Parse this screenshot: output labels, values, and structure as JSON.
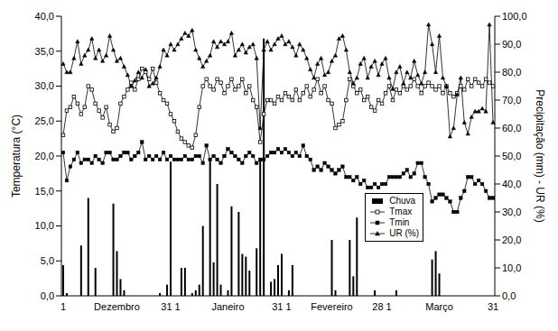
{
  "chart_data": {
    "type": "combo",
    "y_label": "Temperatura (°C)",
    "y2_label": "Precipitação (mm) - UR (%)",
    "legend": "lower right",
    "grid": false,
    "categories": [
      "1",
      null,
      null,
      null,
      null,
      null,
      null,
      null,
      null,
      null,
      null,
      null,
      null,
      null,
      null,
      "Dezembro",
      null,
      null,
      null,
      null,
      null,
      null,
      null,
      null,
      null,
      null,
      null,
      null,
      null,
      null,
      "31 1",
      null,
      null,
      null,
      null,
      null,
      null,
      null,
      null,
      null,
      null,
      null,
      null,
      null,
      null,
      null,
      "Janeiro",
      null,
      null,
      null,
      null,
      null,
      null,
      null,
      null,
      null,
      null,
      null,
      null,
      null,
      null,
      "31 1",
      null,
      null,
      null,
      null,
      null,
      null,
      null,
      null,
      null,
      null,
      null,
      null,
      null,
      "Fevereiro",
      null,
      null,
      null,
      null,
      null,
      null,
      null,
      null,
      null,
      null,
      null,
      null,
      null,
      "28 1",
      null,
      null,
      null,
      null,
      null,
      null,
      null,
      null,
      null,
      null,
      null,
      null,
      null,
      null,
      null,
      "Março",
      null,
      null,
      null,
      null,
      null,
      null,
      null,
      null,
      null,
      null,
      null,
      null,
      null,
      null,
      "31"
    ],
    "ylim": [
      0,
      40
    ],
    "yticks": [
      {
        "value": 0,
        "label": "0,0"
      },
      {
        "value": 5,
        "label": "5,0"
      },
      {
        "value": 10,
        "label": "10,0"
      },
      {
        "value": 15,
        "label": "15,0"
      },
      {
        "value": 20,
        "label": "20,0"
      },
      {
        "value": 25,
        "label": "25,0"
      },
      {
        "value": 30,
        "label": "30,0"
      },
      {
        "value": 35,
        "label": "35,0"
      },
      {
        "value": 40,
        "label": "40,0"
      }
    ],
    "y2lim": [
      0,
      100
    ],
    "y2ticks": [
      {
        "value": 0,
        "label": "0,0"
      },
      {
        "value": 10,
        "label": "10,0"
      },
      {
        "value": 20,
        "label": "20,0"
      },
      {
        "value": 30,
        "label": "30,0"
      },
      {
        "value": 40,
        "label": "40,0"
      },
      {
        "value": 50,
        "label": "50,0"
      },
      {
        "value": 60,
        "label": "60,0"
      },
      {
        "value": 70,
        "label": "70,0"
      },
      {
        "value": 80,
        "label": "80,0"
      },
      {
        "value": 90,
        "label": "90,0"
      },
      {
        "value": 100,
        "label": "100,0"
      }
    ],
    "series": [
      {
        "name": "Chuva",
        "type": "bar",
        "axis": "y2",
        "color": "#000000",
        "values": [
          11,
          1,
          0,
          0,
          0,
          18,
          0,
          35,
          0,
          10,
          0,
          0,
          0,
          0,
          33,
          16,
          6,
          2,
          0,
          0,
          0,
          0,
          0,
          0,
          0,
          0,
          0,
          1,
          0,
          4,
          48,
          0,
          0,
          10,
          10,
          0,
          1,
          2,
          4,
          25,
          0,
          49,
          12,
          40,
          4,
          0,
          2,
          32,
          0,
          30,
          15,
          14,
          9,
          0,
          17,
          49,
          92,
          0,
          5,
          6,
          11,
          15,
          0,
          2,
          11,
          0,
          0,
          0,
          0,
          0,
          0,
          0,
          0,
          0,
          0,
          20,
          2,
          0,
          0,
          0,
          20,
          7,
          28,
          0,
          0,
          0,
          0,
          2,
          0,
          0,
          0,
          0,
          0,
          2,
          0,
          0,
          0,
          0,
          0,
          0,
          0,
          0,
          0,
          13,
          16,
          8,
          0,
          0,
          0,
          0,
          0,
          0,
          0,
          0,
          0,
          0,
          0,
          0,
          0,
          0,
          0
        ]
      },
      {
        "name": "Tmax",
        "type": "line",
        "color": "#000000",
        "marker": "square-open",
        "line_style": "solid",
        "values": [
          23,
          26.5,
          27,
          28.5,
          27.5,
          26,
          27,
          30,
          29.5,
          27.5,
          26.5,
          25.5,
          27,
          24.5,
          23.5,
          24,
          27.5,
          28.5,
          29.5,
          30.5,
          29.5,
          31,
          32.5,
          32,
          31,
          32.5,
          30.5,
          29,
          28,
          27.5,
          26,
          25,
          23.5,
          22.5,
          22,
          21.5,
          21.2,
          23,
          27,
          30,
          31,
          30,
          29.5,
          31,
          30.5,
          29,
          30,
          31,
          29.5,
          30,
          31,
          29,
          30,
          28,
          27,
          22,
          26,
          28,
          28,
          27.5,
          28.5,
          28,
          29,
          28.5,
          28,
          29.5,
          28,
          29,
          30,
          28.5,
          29.5,
          31,
          29,
          30,
          28,
          27.5,
          24,
          24.5,
          25,
          28,
          31,
          30,
          29,
          29.5,
          28,
          28.5,
          27,
          26.5,
          28,
          27.5,
          29,
          30,
          28,
          29.5,
          29,
          30,
          29.5,
          30,
          31,
          30,
          29,
          30,
          30.5,
          30,
          29.5,
          30,
          29,
          30,
          29,
          28.5,
          29,
          30,
          29.5,
          31,
          30,
          31,
          30.5,
          30,
          31,
          30.5,
          30
        ]
      },
      {
        "name": "Tmin",
        "type": "line",
        "color": "#000000",
        "marker": "square",
        "line_style": "solid",
        "values": [
          20.5,
          16.5,
          18.5,
          19.5,
          20.5,
          19,
          19.5,
          19.5,
          19,
          20,
          19.5,
          19,
          20.5,
          20.5,
          19.5,
          19.5,
          20,
          20.5,
          20.5,
          19.5,
          20,
          20.5,
          22,
          19.5,
          20,
          19.5,
          20,
          19.5,
          20.5,
          19.5,
          20,
          19.5,
          19.5,
          19.5,
          20,
          19.5,
          19.5,
          20,
          20,
          19,
          21.5,
          19.5,
          20,
          19.5,
          19,
          20,
          21,
          20.5,
          20,
          19.5,
          19,
          20,
          20.5,
          20,
          19,
          19.5,
          19.5,
          20,
          20.5,
          20.5,
          21,
          20.5,
          21,
          20.5,
          20,
          20.5,
          20,
          21.5,
          20,
          19.5,
          18,
          18.5,
          18,
          19,
          18.5,
          18,
          17.5,
          18,
          18.5,
          17,
          17,
          16.5,
          17,
          16,
          16.5,
          15.5,
          15.5,
          16,
          15.5,
          16,
          16,
          17,
          17,
          17,
          17,
          17.5,
          18,
          17,
          17.5,
          19,
          19,
          17,
          16,
          13.5,
          14,
          14.5,
          14.5,
          14,
          13.5,
          12,
          12,
          14,
          15,
          17,
          17,
          16,
          16.5,
          16,
          15,
          14,
          14
        ]
      },
      {
        "name": "UR (%)",
        "type": "line",
        "axis": "y2",
        "color": "#000000",
        "marker": "triangle",
        "line_style": "solid",
        "values": [
          83,
          80,
          80,
          85,
          91,
          83,
          86,
          88,
          92,
          85,
          88,
          84,
          86,
          93,
          88,
          84,
          85,
          82,
          79,
          75,
          77,
          80,
          78,
          81,
          75,
          76,
          78,
          82,
          88,
          86,
          90,
          88,
          90,
          92,
          94,
          93,
          95,
          88,
          85,
          82,
          84,
          86,
          91,
          89,
          91,
          90,
          91,
          94,
          86,
          88,
          90,
          87,
          89,
          90,
          85,
          60,
          88,
          91,
          88,
          90,
          92,
          93,
          90,
          91,
          89,
          86,
          90,
          88,
          85,
          81,
          78,
          83,
          85,
          79,
          80,
          84,
          86,
          92,
          93,
          88,
          80,
          76,
          78,
          83,
          85,
          78,
          82,
          84,
          79,
          83,
          85,
          78,
          74,
          80,
          82,
          76,
          80,
          78,
          84,
          79,
          76,
          80,
          97,
          90,
          80,
          93,
          78,
          75,
          57,
          60,
          72,
          78,
          62,
          58,
          64,
          66,
          66,
          67,
          66,
          97,
          62
        ]
      }
    ]
  }
}
